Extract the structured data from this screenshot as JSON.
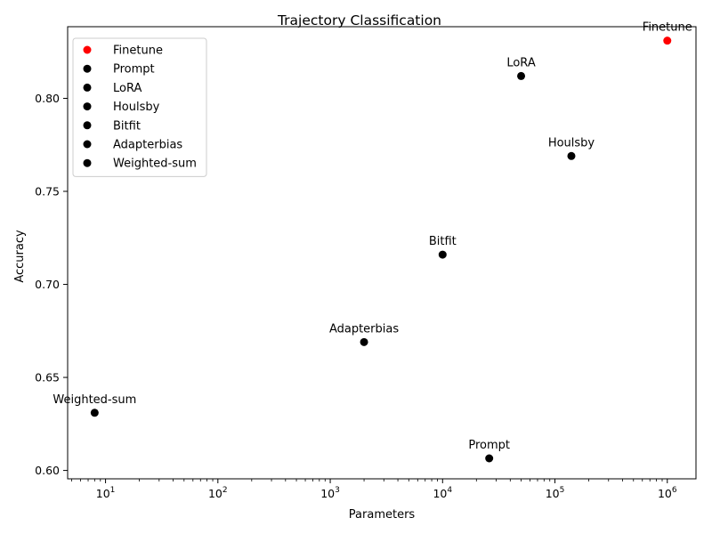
{
  "chart_data": {
    "type": "scatter",
    "title": "Trajectory Classification",
    "xlabel": "Parameters",
    "ylabel": "Accuracy",
    "xscale": "log",
    "xlim": [
      4.6,
      1800000
    ],
    "ylim": [
      0.5955,
      0.8385
    ],
    "xticks": [
      {
        "value": 10,
        "base": "10",
        "exp": "1"
      },
      {
        "value": 100,
        "base": "10",
        "exp": "2"
      },
      {
        "value": 1000,
        "base": "10",
        "exp": "3"
      },
      {
        "value": 10000,
        "base": "10",
        "exp": "4"
      },
      {
        "value": 100000,
        "base": "10",
        "exp": "5"
      },
      {
        "value": 1000000,
        "base": "10",
        "exp": "6"
      }
    ],
    "yticks": [
      {
        "value": 0.6,
        "label": "0.60"
      },
      {
        "value": 0.65,
        "label": "0.65"
      },
      {
        "value": 0.7,
        "label": "0.70"
      },
      {
        "value": 0.75,
        "label": "0.75"
      },
      {
        "value": 0.8,
        "label": "0.80"
      }
    ],
    "legend_position": "upper-left",
    "grid": false,
    "series": [
      {
        "name": "Finetune",
        "x": 1000000,
        "y": 0.831,
        "color": "#ff0000"
      },
      {
        "name": "Prompt",
        "x": 26000,
        "y": 0.6065,
        "color": "#000000"
      },
      {
        "name": "LoRA",
        "x": 50000,
        "y": 0.812,
        "color": "#000000"
      },
      {
        "name": "Houlsby",
        "x": 140000,
        "y": 0.769,
        "color": "#000000"
      },
      {
        "name": "Bitfit",
        "x": 10000,
        "y": 0.716,
        "color": "#000000"
      },
      {
        "name": "Adapterbias",
        "x": 2000,
        "y": 0.669,
        "color": "#000000"
      },
      {
        "name": "Weighted-sum",
        "x": 8,
        "y": 0.631,
        "color": "#000000"
      }
    ]
  }
}
